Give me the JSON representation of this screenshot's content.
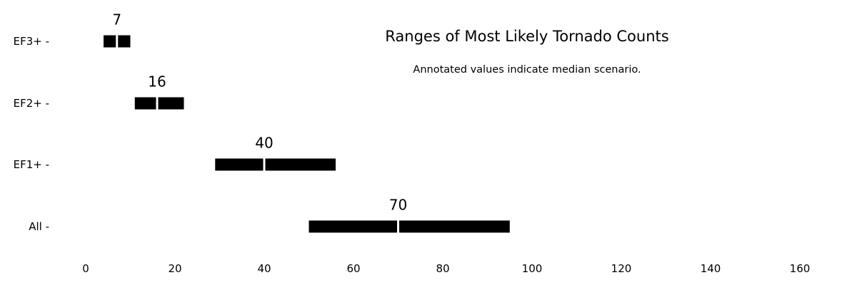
{
  "chart_data": {
    "type": "range-bar",
    "title": "Ranges of Most Likely Tornado Counts",
    "subtitle": "Annotated values indicate median scenario.",
    "xlabel": "",
    "ylabel": "",
    "xlim": [
      -8,
      168
    ],
    "x_ticks": [
      0,
      20,
      40,
      60,
      80,
      100,
      120,
      140,
      160
    ],
    "grid": false,
    "colors": {
      "bar": "#000000",
      "median_line": "#ffffff"
    },
    "categories": [
      {
        "label": "EF3+ -",
        "low": 4,
        "high": 10,
        "median": 7
      },
      {
        "label": "EF2+ -",
        "low": 11,
        "high": 22,
        "median": 16
      },
      {
        "label": "EF1+ -",
        "low": 29,
        "high": 56,
        "median": 40
      },
      {
        "label": "All -",
        "low": 50,
        "high": 95,
        "median": 70
      }
    ]
  }
}
